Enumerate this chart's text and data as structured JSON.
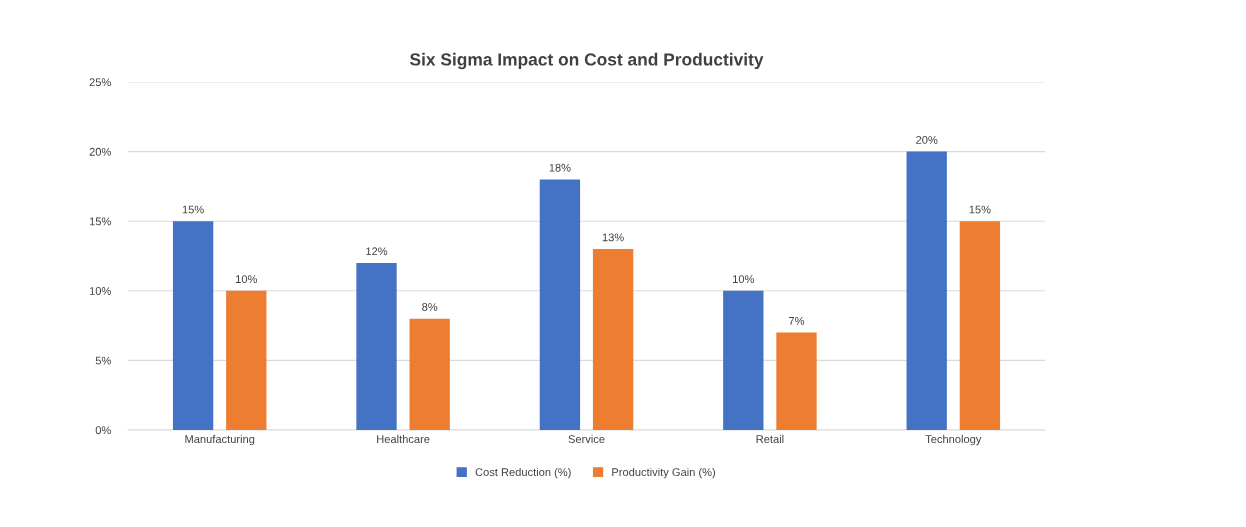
{
  "chart_data": {
    "type": "bar",
    "title": "Six Sigma Impact on Cost and Productivity",
    "categories": [
      "Manufacturing",
      "Healthcare",
      "Service",
      "Retail",
      "Technology"
    ],
    "series": [
      {
        "name": "Cost Reduction (%)",
        "color": "#4472c4",
        "values": [
          15,
          12,
          18,
          10,
          20
        ],
        "value_labels": [
          "15%",
          "12%",
          "18%",
          "10%",
          "20%"
        ]
      },
      {
        "name": "Productivity Gain (%)",
        "color": "#ed7d31",
        "values": [
          10,
          8,
          13,
          7,
          15
        ],
        "value_labels": [
          "10%",
          "8%",
          "13%",
          "7%",
          "15%"
        ]
      }
    ],
    "ylim": [
      0,
      25
    ],
    "yticks": [
      {
        "value": 0,
        "label": "0%"
      },
      {
        "value": 5,
        "label": "5%"
      },
      {
        "value": 10,
        "label": "10%"
      },
      {
        "value": 15,
        "label": "15%"
      },
      {
        "value": 20,
        "label": "20%"
      },
      {
        "value": 25,
        "label": "25%"
      }
    ],
    "grid": "y",
    "legend": "bottom"
  }
}
